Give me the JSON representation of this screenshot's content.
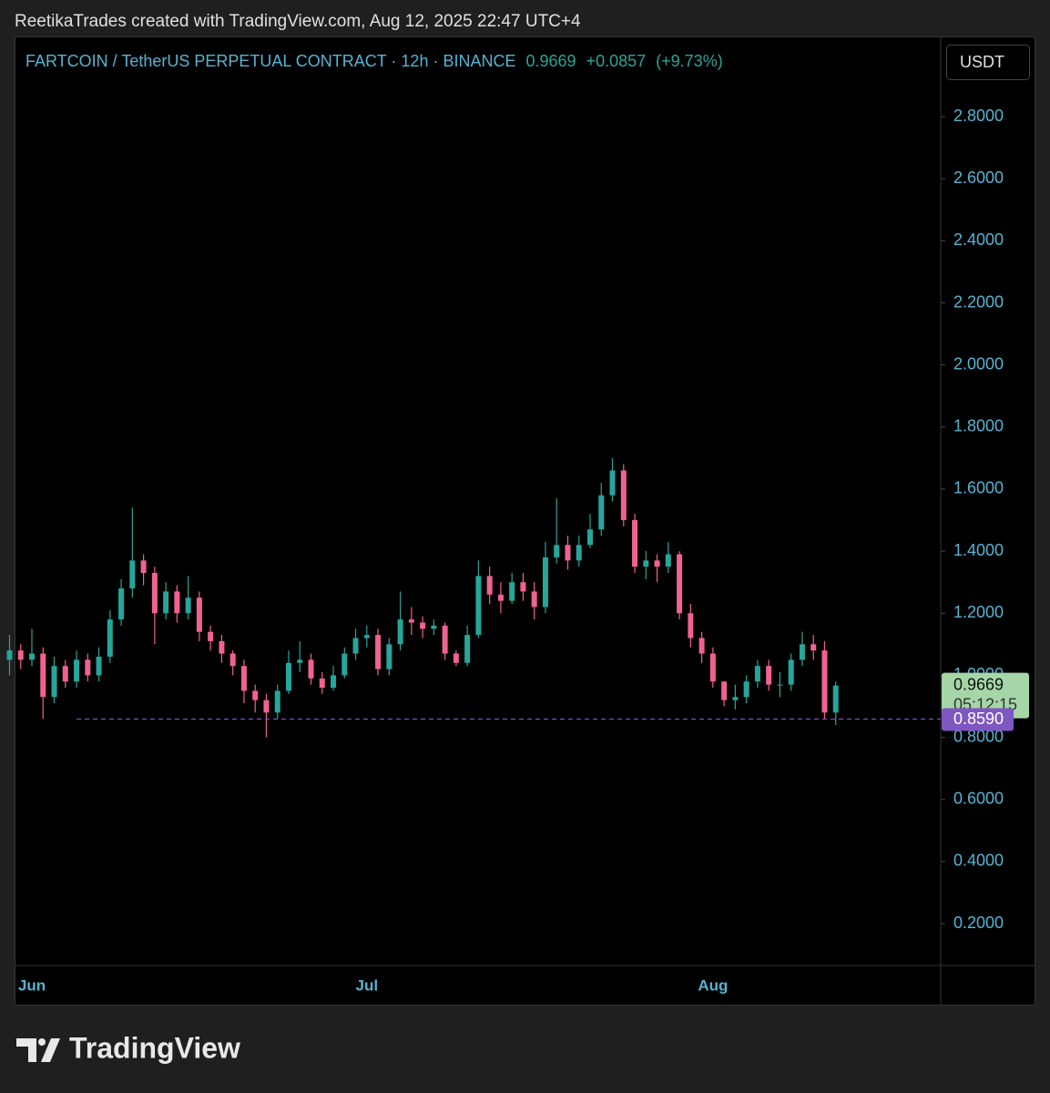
{
  "credit": "ReetikaTrades created with TradingView.com, Aug 12, 2025 22:47 UTC+4",
  "brand": "TradingView",
  "chart_data": {
    "type": "candlestick",
    "legend_symbol": "FARTCOIN / TetherUS PERPETUAL CONTRACT · 12h · BINANCE",
    "legend_price": 0.9669,
    "change": {
      "value": 0.0857,
      "label": "+0.0857"
    },
    "change_pct": {
      "value": 9.73,
      "label": "(+9.73%)"
    },
    "currency": "USDT",
    "countdown": "05:12:15",
    "up_color": "#26a69a",
    "down_color": "#f06292",
    "categories": [
      null,
      null,
      "Jun",
      null,
      null,
      null,
      null,
      null,
      null,
      null,
      null,
      null,
      null,
      null,
      null,
      null,
      null,
      null,
      null,
      null,
      null,
      null,
      null,
      null,
      null,
      null,
      null,
      null,
      null,
      null,
      null,
      null,
      "Jul",
      null,
      null,
      null,
      null,
      null,
      null,
      null,
      null,
      null,
      null,
      null,
      null,
      null,
      null,
      null,
      null,
      null,
      null,
      null,
      null,
      null,
      null,
      null,
      null,
      null,
      null,
      null,
      null,
      null,
      null,
      "Aug",
      null,
      null,
      null,
      null,
      null,
      null,
      null,
      null,
      null,
      null,
      null
    ],
    "open": [
      1.05,
      1.08,
      1.05,
      1.07,
      0.93,
      1.03,
      0.98,
      1.05,
      1.0,
      1.06,
      1.18,
      1.28,
      1.37,
      1.33,
      1.2,
      1.27,
      1.2,
      1.25,
      1.14,
      1.11,
      1.07,
      1.03,
      0.95,
      0.92,
      0.88,
      0.95,
      1.04,
      1.05,
      0.99,
      0.96,
      1.0,
      1.07,
      1.12,
      1.13,
      1.02,
      1.1,
      1.18,
      1.17,
      1.15,
      1.16,
      1.07,
      1.04,
      1.13,
      1.32,
      1.26,
      1.24,
      1.3,
      1.27,
      1.22,
      1.38,
      1.42,
      1.37,
      1.42,
      1.47,
      1.58,
      1.66,
      1.5,
      1.35,
      1.37,
      1.35,
      1.39,
      1.2,
      1.12,
      1.07,
      0.98,
      0.92,
      0.93,
      0.98,
      1.03,
      0.97,
      0.97,
      1.05,
      1.1,
      1.08,
      0.88
    ],
    "high": [
      1.13,
      1.1,
      1.15,
      1.09,
      1.06,
      1.05,
      1.08,
      1.07,
      1.09,
      1.21,
      1.31,
      1.54,
      1.39,
      1.35,
      1.3,
      1.29,
      1.32,
      1.27,
      1.16,
      1.13,
      1.08,
      1.05,
      0.97,
      0.94,
      0.97,
      1.08,
      1.11,
      1.07,
      1.01,
      1.03,
      1.09,
      1.15,
      1.16,
      1.15,
      1.12,
      1.27,
      1.22,
      1.19,
      1.18,
      1.17,
      1.08,
      1.16,
      1.37,
      1.35,
      1.3,
      1.33,
      1.33,
      1.3,
      1.43,
      1.57,
      1.45,
      1.45,
      1.52,
      1.62,
      1.7,
      1.68,
      1.52,
      1.4,
      1.39,
      1.43,
      1.4,
      1.23,
      1.14,
      1.09,
      0.98,
      0.97,
      1.0,
      1.05,
      1.05,
      1.01,
      1.07,
      1.14,
      1.13,
      1.11,
      0.98
    ],
    "low": [
      1.0,
      1.02,
      1.03,
      0.86,
      0.91,
      0.96,
      0.96,
      0.98,
      0.98,
      1.04,
      1.16,
      1.25,
      1.29,
      1.1,
      1.18,
      1.17,
      1.18,
      1.11,
      1.08,
      1.04,
      1.0,
      0.91,
      0.88,
      0.8,
      0.86,
      0.94,
      1.01,
      0.97,
      0.94,
      0.95,
      0.99,
      1.05,
      1.09,
      1.0,
      1.0,
      1.08,
      1.13,
      1.12,
      1.13,
      1.05,
      1.03,
      1.03,
      1.12,
      1.23,
      1.2,
      1.23,
      1.24,
      1.18,
      1.2,
      1.36,
      1.34,
      1.35,
      1.41,
      1.45,
      1.56,
      1.48,
      1.33,
      1.31,
      1.3,
      1.33,
      1.18,
      1.09,
      1.04,
      0.96,
      0.9,
      0.89,
      0.91,
      0.96,
      0.95,
      0.93,
      0.95,
      1.03,
      1.05,
      0.86,
      0.84
    ],
    "close": [
      1.08,
      1.05,
      1.07,
      0.93,
      1.03,
      0.98,
      1.05,
      1.0,
      1.06,
      1.18,
      1.28,
      1.37,
      1.33,
      1.2,
      1.27,
      1.2,
      1.25,
      1.14,
      1.11,
      1.07,
      1.03,
      0.95,
      0.92,
      0.88,
      0.95,
      1.04,
      1.05,
      0.99,
      0.96,
      1.0,
      1.07,
      1.12,
      1.13,
      1.02,
      1.1,
      1.18,
      1.17,
      1.15,
      1.16,
      1.07,
      1.04,
      1.13,
      1.32,
      1.26,
      1.24,
      1.3,
      1.27,
      1.22,
      1.38,
      1.42,
      1.37,
      1.42,
      1.47,
      1.58,
      1.66,
      1.5,
      1.35,
      1.37,
      1.35,
      1.39,
      1.2,
      1.12,
      1.07,
      0.98,
      0.92,
      0.93,
      0.98,
      1.03,
      0.97,
      0.97,
      1.05,
      1.1,
      1.08,
      0.88,
      0.9669
    ],
    "level_line": {
      "value": 0.859,
      "label": "0.8590",
      "color": "#7e57c2"
    },
    "ylim": [
      0.065,
      3.035
    ],
    "yticks": [
      {
        "value": 0.2,
        "label": "0.2000"
      },
      {
        "value": 0.4,
        "label": "0.4000"
      },
      {
        "value": 0.6,
        "label": "0.6000"
      },
      {
        "value": 0.8,
        "label": "0.8000"
      },
      {
        "value": 1.0,
        "label": "1.0000"
      },
      {
        "value": 1.2,
        "label": "1.2000"
      },
      {
        "value": 1.4,
        "label": "1.4000"
      },
      {
        "value": 1.6,
        "label": "1.6000"
      },
      {
        "value": 1.8,
        "label": "1.8000"
      },
      {
        "value": 2.0,
        "label": "2.0000"
      },
      {
        "value": 2.2,
        "label": "2.2000"
      },
      {
        "value": 2.4,
        "label": "2.4000"
      },
      {
        "value": 2.6,
        "label": "2.6000"
      },
      {
        "value": 2.8,
        "label": "2.8000"
      }
    ],
    "grid": false
  }
}
